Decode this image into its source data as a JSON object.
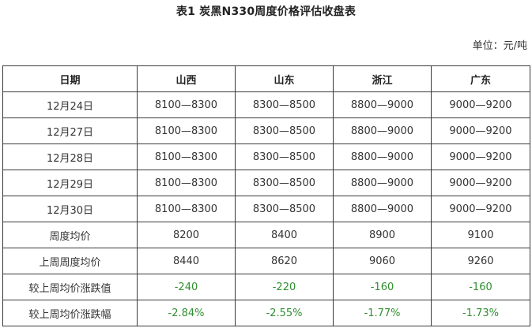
{
  "title": "表1 炭黑N330周度价格评估收盘表",
  "unit": "单位：元/吨",
  "table": {
    "headers": [
      "日期",
      "山西",
      "山东",
      "浙江",
      "广东"
    ],
    "rows": [
      [
        "12月24日",
        "8100—8300",
        "8300—8500",
        "8800—9000",
        "9000—9200"
      ],
      [
        "12月27日",
        "8100—8300",
        "8300—8500",
        "8800—9000",
        "9000—9200"
      ],
      [
        "12月28日",
        "8100—8300",
        "8300—8500",
        "8800—9000",
        "9000—9200"
      ],
      [
        "12月29日",
        "8100—8300",
        "8300—8500",
        "8800—9000",
        "9000—9200"
      ],
      [
        "12月30日",
        "8100—8300",
        "8300—8500",
        "8800—9000",
        "9000—9200"
      ],
      [
        "周度均价",
        "8200",
        "8400",
        "8900",
        "9100"
      ],
      [
        "上周周度均价",
        "8440",
        "8620",
        "9060",
        "9260"
      ],
      [
        "较上周均价涨跌值",
        "-240",
        "-220",
        "-160",
        "-160"
      ],
      [
        "较上周均价涨跌幅",
        "-2.84%",
        "-2.55%",
        "-1.77%",
        "-1.73%"
      ]
    ]
  },
  "colors": {
    "border": "#3a3a3a",
    "negative_change": "#2f8f2f",
    "text": "#333333"
  }
}
